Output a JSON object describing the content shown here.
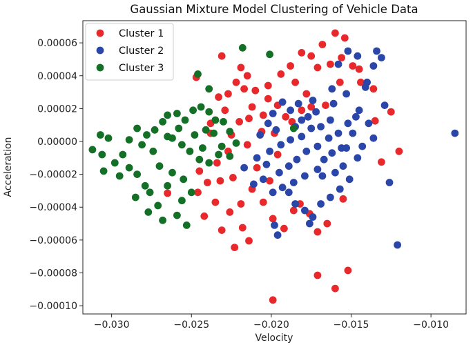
{
  "chart_data": {
    "type": "scatter",
    "title": "Gaussian Mixture Model Clustering of Vehicle Data",
    "xlabel": "Velocity",
    "ylabel": "Acceleration",
    "xlim": [
      -0.0318,
      -0.0078
    ],
    "ylim": [
      -0.000105,
      7.35e-05
    ],
    "x_ticks": [
      -0.03,
      -0.025,
      -0.02,
      -0.015,
      -0.01
    ],
    "x_tick_labels": [
      "−0.030",
      "−0.025",
      "−0.020",
      "−0.015",
      "−0.010"
    ],
    "y_ticks": [
      6e-05,
      4e-05,
      2e-05,
      0.0,
      -2e-05,
      -4e-05,
      -6e-05,
      -8e-05,
      -0.0001
    ],
    "y_tick_labels": [
      "0.00006",
      "0.00004",
      "0.00002",
      "0.00000",
      "−0.00002",
      "−0.00004",
      "−0.00006",
      "−0.00008",
      "−0.00010"
    ],
    "grid": false,
    "legend_position": "top-left",
    "series": [
      {
        "name": "Cluster 1",
        "color": "#e8282b",
        "points": [
          [
            -0.0265,
            -3.15e-05
          ],
          [
            -0.0242,
            -4.55e-05
          ],
          [
            -0.0235,
            -3.7e-05
          ],
          [
            -0.0231,
            -5.4e-05
          ],
          [
            -0.0223,
            -6.45e-05
          ],
          [
            -0.0226,
            -4.3e-05
          ],
          [
            -0.0218,
            -5.25e-05
          ],
          [
            -0.0214,
            -6.05e-05
          ],
          [
            -0.0199,
            -9.65e-05
          ],
          [
            -0.0171,
            -8.15e-05
          ],
          [
            -0.016,
            -8.95e-05
          ],
          [
            -0.0152,
            -7.85e-05
          ],
          [
            -0.0155,
            -3.5e-05
          ],
          [
            -0.0131,
            -1.25e-05
          ],
          [
            -0.012,
            -6e-06
          ],
          [
            -0.0238,
            5e-06
          ],
          [
            -0.0234,
            -1.3e-05
          ],
          [
            -0.0229,
            1.9e-05
          ],
          [
            -0.0233,
            2.7e-05
          ],
          [
            -0.0227,
            2.9e-05
          ],
          [
            -0.0222,
            3.6e-05
          ],
          [
            -0.0217,
            3.2e-05
          ],
          [
            -0.021,
            3.1e-05
          ],
          [
            -0.0212,
            -2.9e-05
          ],
          [
            -0.0205,
            -3.7e-05
          ],
          [
            -0.0199,
            -4.7e-05
          ],
          [
            -0.0192,
            -5.3e-05
          ],
          [
            -0.0186,
            -4.2e-05
          ],
          [
            -0.0182,
            -3.8e-05
          ],
          [
            -0.0176,
            -4.4e-05
          ],
          [
            -0.0196,
            2.2e-05
          ],
          [
            -0.0191,
            1.5e-05
          ],
          [
            -0.0187,
            1.2e-05
          ],
          [
            -0.0181,
            1.9e-05
          ],
          [
            -0.0175,
            2.1e-05
          ],
          [
            -0.0185,
            3.6e-05
          ],
          [
            -0.0202,
            3.4e-05
          ],
          [
            -0.0194,
            4.1e-05
          ],
          [
            -0.0188,
            4.6e-05
          ],
          [
            -0.0181,
            5.4e-05
          ],
          [
            -0.0175,
            5.2e-05
          ],
          [
            -0.0168,
            5.9e-05
          ],
          [
            -0.016,
            6.6e-05
          ],
          [
            -0.0154,
            6.3e-05
          ],
          [
            -0.0171,
            4.5e-05
          ],
          [
            -0.0163,
            4.7e-05
          ],
          [
            -0.0156,
            5.1e-05
          ],
          [
            -0.0149,
            4.6e-05
          ],
          [
            -0.0145,
            4.4e-05
          ],
          [
            -0.0157,
            3.6e-05
          ],
          [
            -0.0144,
            3.6e-05
          ],
          [
            -0.0136,
            3.2e-05
          ],
          [
            -0.0135,
            1.25e-05
          ],
          [
            -0.0125,
            1.8e-05
          ],
          [
            -0.0245,
            -1.8e-05
          ],
          [
            -0.0246,
            -3.1e-05
          ],
          [
            -0.024,
            -2.5e-05
          ],
          [
            -0.0215,
            -2e-06
          ],
          [
            -0.0206,
            6e-06
          ],
          [
            -0.022,
            1.2e-05
          ],
          [
            -0.0227,
            -6e-06
          ],
          [
            -0.0209,
            -1.6e-05
          ],
          [
            -0.0201,
            -2.4e-05
          ],
          [
            -0.0212,
            2.1e-05
          ],
          [
            -0.0198,
            5e-06
          ],
          [
            -0.0219,
            4.5e-05
          ],
          [
            -0.0202,
            2.6e-05
          ],
          [
            -0.0232,
            -2.4e-05
          ],
          [
            -0.0219,
            -3.8e-05
          ],
          [
            -0.0205,
            1.6e-05
          ],
          [
            -0.0178,
            2.9e-05
          ],
          [
            -0.0166,
            2.2e-05
          ],
          [
            -0.0225,
            4e-06
          ],
          [
            -0.0231,
            5.2e-05
          ],
          [
            -0.0247,
            3.9e-05
          ],
          [
            -0.0238,
            1.1e-05
          ],
          [
            -0.0214,
            1.4e-05
          ],
          [
            -0.0196,
            -8e-06
          ],
          [
            -0.0171,
            -5.5e-05
          ],
          [
            -0.0165,
            -5e-05
          ],
          [
            -0.0224,
            -2.2e-05
          ],
          [
            -0.0215,
            4e-05
          ]
        ]
      },
      {
        "name": "Cluster 2",
        "color": "#2a46a8",
        "points": [
          [
            -0.0085,
            5e-06
          ],
          [
            -0.0121,
            -6.3e-05
          ],
          [
            -0.0126,
            -2.5e-05
          ],
          [
            -0.0129,
            2.2e-05
          ],
          [
            -0.0134,
            5.5e-05
          ],
          [
            -0.0131,
            5.1e-05
          ],
          [
            -0.0136,
            4.6e-05
          ],
          [
            -0.0146,
            5.2e-05
          ],
          [
            -0.0152,
            5.5e-05
          ],
          [
            -0.0158,
            4.7e-05
          ],
          [
            -0.014,
            3.6e-05
          ],
          [
            -0.0141,
            3.3e-05
          ],
          [
            -0.0153,
            2.9e-05
          ],
          [
            -0.0161,
            2.3e-05
          ],
          [
            -0.0162,
            3.2e-05
          ],
          [
            -0.0172,
            1.8e-05
          ],
          [
            -0.0174,
            2.5e-05
          ],
          [
            -0.0181,
            1.3e-05
          ],
          [
            -0.0183,
            2.3e-05
          ],
          [
            -0.0188,
            1.9e-05
          ],
          [
            -0.0193,
            2.4e-05
          ],
          [
            -0.0199,
            1.7e-05
          ],
          [
            -0.0202,
            1.1e-05
          ],
          [
            -0.0197,
            7e-06
          ],
          [
            -0.0207,
            4e-06
          ],
          [
            -0.0201,
            -6e-06
          ],
          [
            -0.0209,
            -1e-05
          ],
          [
            -0.0217,
            -1.6e-05
          ],
          [
            -0.0205,
            -2.3e-05
          ],
          [
            -0.0199,
            -3.1e-05
          ],
          [
            -0.0193,
            -2.8e-05
          ],
          [
            -0.0189,
            -3.1e-05
          ],
          [
            -0.0185,
            -3.8e-05
          ],
          [
            -0.0179,
            -4.2e-05
          ],
          [
            -0.0174,
            -4.6e-05
          ],
          [
            -0.0169,
            -3.8e-05
          ],
          [
            -0.0163,
            -3.4e-05
          ],
          [
            -0.0157,
            -2.9e-05
          ],
          [
            -0.0151,
            -2.3e-05
          ],
          [
            -0.0155,
            -1.5e-05
          ],
          [
            -0.0146,
            -1e-05
          ],
          [
            -0.0143,
            -3e-06
          ],
          [
            -0.0136,
            2e-06
          ],
          [
            -0.0139,
            1.1e-05
          ],
          [
            -0.0147,
            1.5e-05
          ],
          [
            -0.0152,
            1.1e-05
          ],
          [
            -0.0158,
            5e-06
          ],
          [
            -0.0164,
            2e-06
          ],
          [
            -0.0171,
            -3e-06
          ],
          [
            -0.0178,
            -6e-06
          ],
          [
            -0.0184,
            -1.1e-05
          ],
          [
            -0.0189,
            -1.5e-05
          ],
          [
            -0.0195,
            -1.9e-05
          ],
          [
            -0.0186,
            -2.5e-05
          ],
          [
            -0.0179,
            -2.1e-05
          ],
          [
            -0.0171,
            -1.7e-05
          ],
          [
            -0.0167,
            -1.1e-05
          ],
          [
            -0.0162,
            -7e-06
          ],
          [
            -0.0156,
            -4e-06
          ],
          [
            -0.0175,
            8e-06
          ],
          [
            -0.0181,
            3e-06
          ],
          [
            -0.0188,
            1e-06
          ],
          [
            -0.0194,
            -2e-06
          ],
          [
            -0.0163,
            1.3e-05
          ],
          [
            -0.0169,
            9e-06
          ],
          [
            -0.0203,
            -1.4e-05
          ],
          [
            -0.0211,
            -2.6e-05
          ],
          [
            -0.0198,
            -5.1e-05
          ],
          [
            -0.0196,
            -5.7e-05
          ],
          [
            -0.0176,
            -5e-05
          ],
          [
            -0.0168,
            -2.1e-05
          ],
          [
            -0.016,
            -1.9e-05
          ],
          [
            -0.0153,
            -4e-06
          ],
          [
            -0.0149,
            5e-06
          ],
          [
            -0.0145,
            1.9e-05
          ],
          [
            -0.0185,
            9e-06
          ],
          [
            -0.0177,
            1.5e-05
          ]
        ]
      },
      {
        "name": "Cluster 3",
        "color": "#137026",
        "points": [
          [
            -0.0312,
            -5e-06
          ],
          [
            -0.0306,
            -8e-06
          ],
          [
            -0.0307,
            4e-06
          ],
          [
            -0.0302,
            2e-06
          ],
          [
            -0.0305,
            -1.8e-05
          ],
          [
            -0.0298,
            -1.3e-05
          ],
          [
            -0.0295,
            -2.1e-05
          ],
          [
            -0.0293,
            -8e-06
          ],
          [
            -0.0289,
            -1.6e-05
          ],
          [
            -0.0284,
            -2e-05
          ],
          [
            -0.0285,
            -3.4e-05
          ],
          [
            -0.0279,
            -2.7e-05
          ],
          [
            -0.0277,
            -4.3e-05
          ],
          [
            -0.0271,
            -3.9e-05
          ],
          [
            -0.0268,
            -4.8e-05
          ],
          [
            -0.0259,
            -4.5e-05
          ],
          [
            -0.0253,
            -5.1e-05
          ],
          [
            -0.0256,
            -3.6e-05
          ],
          [
            -0.025,
            -3.1e-05
          ],
          [
            -0.0255,
            -2.3e-05
          ],
          [
            -0.0262,
            -1.9e-05
          ],
          [
            -0.027,
            -1.5e-05
          ],
          [
            -0.0274,
            -6e-06
          ],
          [
            -0.0281,
            -2e-06
          ],
          [
            -0.0284,
            8e-06
          ],
          [
            -0.0278,
            4e-06
          ],
          [
            -0.0273,
            7e-06
          ],
          [
            -0.0268,
            1.2e-05
          ],
          [
            -0.0265,
            1.6e-05
          ],
          [
            -0.0259,
            1.7e-05
          ],
          [
            -0.0254,
            1.3e-05
          ],
          [
            -0.0249,
            1.9e-05
          ],
          [
            -0.0244,
            2.1e-05
          ],
          [
            -0.0239,
            1.8e-05
          ],
          [
            -0.0235,
            1.3e-05
          ],
          [
            -0.023,
            1.2e-05
          ],
          [
            -0.0226,
            6e-06
          ],
          [
            -0.0222,
            -1e-06
          ],
          [
            -0.0226,
            -9e-06
          ],
          [
            -0.0233,
            -8e-06
          ],
          [
            -0.0239,
            -1.3e-05
          ],
          [
            -0.0245,
            -1.1e-05
          ],
          [
            -0.0251,
            -6e-06
          ],
          [
            -0.0256,
            -2e-06
          ],
          [
            -0.0262,
            2e-06
          ],
          [
            -0.0248,
            4e-06
          ],
          [
            -0.0241,
            7e-06
          ],
          [
            -0.0236,
            5e-06
          ],
          [
            -0.0231,
            -3e-06
          ],
          [
            -0.0246,
            4.1e-05
          ],
          [
            -0.0239,
            3.2e-05
          ],
          [
            -0.0218,
            5.7e-05
          ],
          [
            -0.0201,
            5.3e-05
          ],
          [
            -0.0186,
            8e-06
          ],
          [
            -0.0265,
            -2.7e-05
          ],
          [
            -0.0276,
            -3.1e-05
          ],
          [
            -0.0289,
            1e-06
          ],
          [
            -0.0265,
            3e-06
          ],
          [
            -0.0258,
            8e-06
          ],
          [
            -0.0243,
            -4e-06
          ]
        ]
      }
    ]
  }
}
